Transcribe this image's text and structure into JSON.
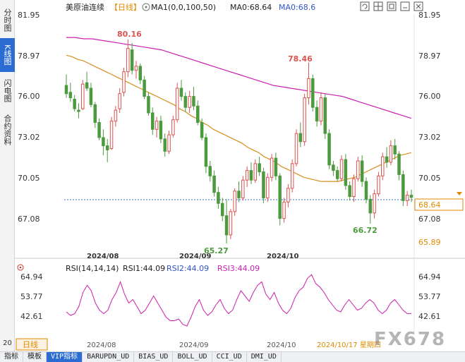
{
  "left_tabs": {
    "items": [
      {
        "label": "分时图",
        "active": false
      },
      {
        "label": "K线图",
        "active": true
      },
      {
        "label": "闪电图",
        "active": false
      },
      {
        "label": "合约资料",
        "active": false
      }
    ],
    "bottom_label": "20"
  },
  "header": {
    "instrument": "美原油连续",
    "period": "【日线】",
    "ma1_text": "MA1(0,0,100,50)",
    "ma0_text": "MA0:68.64",
    "ma0b_text": "MA0:68.6"
  },
  "toolbar_icons": [
    "refresh-icon",
    "grid-icon",
    "maximize-icon",
    "minimize-icon",
    "close-icon"
  ],
  "main_axis": {
    "ticks": [
      "81.95",
      "78.97",
      "76.00",
      "73.02",
      "70.05",
      "67.08"
    ],
    "current_price": "68.64",
    "low_marker_label": "65.89",
    "annotations": [
      "80.16",
      "78.46",
      "65.27",
      "66.72"
    ]
  },
  "rsi": {
    "header": "RSI(14,14,14)",
    "rsi1": "RSI1:44.09",
    "rsi2": "RSI2:44.09",
    "rsi3": "RSI3:44.09",
    "ticks": [
      "64.94",
      "53.77",
      "42.61"
    ]
  },
  "x_axis": {
    "labels": [
      "2024/08",
      "2024/09",
      "2024/10"
    ],
    "period_label": "日线",
    "cursor_date": "2024/10/17 星期四"
  },
  "bottom_tabs": [
    "指标",
    "模板",
    "VIP指标",
    "BARUPDN_UD",
    "BIAS_UD",
    "BOLL_UD",
    "CCI_UD",
    "DMI_UD"
  ],
  "bottom_active_index": 2,
  "watermark": "FX678",
  "colors": {
    "up": "#d9534f",
    "down": "#4c9a3e",
    "ma_orange": "#d6901f",
    "ma_magenta": "#cc1fae",
    "rsi_line": "#cc1fae",
    "accent_blue": "#2b6cd3",
    "price_box": "#e08a00"
  },
  "chart_data": {
    "type": "candlestick",
    "title": "美原油连续 日线",
    "ylim": [
      64.5,
      82.5
    ],
    "candles": [
      [
        76.8,
        77.6,
        75.9,
        76.2
      ],
      [
        76.3,
        77.0,
        75.6,
        75.9
      ],
      [
        75.8,
        76.1,
        74.9,
        75.1
      ],
      [
        75.0,
        75.5,
        74.4,
        74.9
      ],
      [
        75.1,
        77.2,
        75.0,
        76.9
      ],
      [
        77.0,
        77.8,
        76.4,
        76.6
      ],
      [
        76.6,
        77.0,
        75.2,
        75.4
      ],
      [
        75.4,
        75.6,
        73.7,
        74.1
      ],
      [
        74.1,
        74.4,
        72.8,
        73.0
      ],
      [
        73.0,
        73.6,
        71.7,
        72.4
      ],
      [
        72.4,
        72.9,
        71.2,
        72.1
      ],
      [
        72.2,
        74.5,
        72.1,
        74.2
      ],
      [
        74.2,
        75.3,
        73.8,
        75.0
      ],
      [
        75.1,
        76.6,
        74.8,
        76.2
      ],
      [
        76.3,
        78.1,
        76.0,
        77.8
      ],
      [
        77.8,
        80.16,
        77.4,
        79.5
      ],
      [
        79.4,
        79.9,
        77.6,
        77.9
      ],
      [
        77.9,
        78.6,
        77.3,
        78.2
      ],
      [
        78.2,
        78.4,
        76.9,
        77.2
      ],
      [
        77.2,
        77.5,
        75.8,
        76.0
      ],
      [
        76.0,
        76.3,
        74.6,
        74.8
      ],
      [
        74.8,
        75.2,
        73.2,
        73.6
      ],
      [
        73.6,
        74.5,
        73.0,
        74.2
      ],
      [
        74.2,
        74.6,
        72.6,
        72.9
      ],
      [
        72.9,
        73.3,
        71.6,
        72.0
      ],
      [
        72.0,
        73.5,
        71.8,
        73.2
      ],
      [
        73.2,
        74.6,
        73.0,
        74.3
      ],
      [
        74.3,
        77.0,
        74.1,
        76.6
      ],
      [
        76.6,
        77.2,
        75.7,
        76.0
      ],
      [
        76.0,
        76.3,
        74.9,
        75.2
      ],
      [
        75.2,
        76.4,
        74.8,
        76.0
      ],
      [
        76.0,
        76.7,
        75.0,
        75.3
      ],
      [
        75.3,
        75.7,
        73.9,
        74.1
      ],
      [
        74.1,
        74.4,
        72.8,
        73.0
      ],
      [
        73.0,
        73.3,
        70.4,
        70.9
      ],
      [
        70.9,
        71.3,
        69.8,
        70.2
      ],
      [
        70.2,
        70.6,
        68.7,
        69.0
      ],
      [
        69.0,
        69.4,
        67.8,
        68.2
      ],
      [
        68.2,
        68.6,
        66.9,
        67.3
      ],
      [
        67.3,
        68.5,
        65.27,
        65.9
      ],
      [
        65.9,
        67.8,
        65.6,
        67.6
      ],
      [
        67.6,
        69.3,
        67.3,
        69.1
      ],
      [
        69.1,
        69.8,
        68.3,
        68.6
      ],
      [
        68.6,
        70.2,
        68.4,
        69.9
      ],
      [
        69.9,
        70.9,
        69.4,
        70.6
      ],
      [
        70.6,
        71.2,
        69.6,
        69.9
      ],
      [
        69.9,
        71.4,
        69.7,
        71.1
      ],
      [
        71.1,
        71.6,
        70.2,
        70.5
      ],
      [
        70.5,
        70.8,
        68.2,
        68.6
      ],
      [
        68.6,
        70.4,
        68.3,
        70.1
      ],
      [
        70.1,
        71.8,
        69.8,
        71.5
      ],
      [
        71.5,
        71.9,
        69.9,
        70.2
      ],
      [
        70.2,
        70.4,
        66.6,
        67.1
      ],
      [
        67.1,
        68.6,
        66.8,
        68.3
      ],
      [
        68.3,
        69.6,
        67.9,
        69.3
      ],
      [
        69.3,
        71.4,
        69.0,
        71.1
      ],
      [
        71.1,
        73.6,
        70.9,
        73.3
      ],
      [
        73.3,
        74.1,
        72.3,
        72.7
      ],
      [
        72.7,
        76.2,
        72.4,
        75.9
      ],
      [
        75.9,
        78.46,
        75.4,
        77.3
      ],
      [
        77.3,
        77.6,
        74.9,
        75.2
      ],
      [
        75.2,
        75.7,
        73.8,
        74.2
      ],
      [
        74.2,
        76.3,
        73.9,
        75.9
      ],
      [
        75.9,
        76.2,
        72.9,
        73.3
      ],
      [
        73.3,
        73.6,
        70.7,
        71.0
      ],
      [
        71.0,
        71.3,
        70.2,
        70.6
      ],
      [
        70.6,
        70.9,
        69.8,
        70.0
      ],
      [
        70.0,
        71.7,
        69.8,
        71.4
      ],
      [
        71.4,
        71.8,
        69.2,
        69.5
      ],
      [
        69.5,
        69.8,
        68.4,
        68.7
      ],
      [
        68.7,
        70.3,
        68.3,
        70.0
      ],
      [
        70.0,
        71.6,
        69.8,
        71.3
      ],
      [
        71.3,
        71.7,
        69.4,
        69.8
      ],
      [
        69.8,
        70.1,
        68.2,
        68.5
      ],
      [
        68.5,
        68.8,
        66.72,
        67.5
      ],
      [
        67.5,
        69.2,
        67.1,
        68.9
      ],
      [
        68.9,
        70.5,
        68.7,
        70.2
      ],
      [
        70.2,
        71.9,
        69.9,
        71.6
      ],
      [
        71.6,
        72.3,
        70.8,
        71.2
      ],
      [
        71.2,
        72.8,
        71.0,
        72.4
      ],
      [
        72.4,
        72.9,
        71.4,
        71.8
      ],
      [
        71.8,
        72.0,
        69.9,
        70.3
      ],
      [
        70.3,
        70.6,
        68.0,
        68.4
      ],
      [
        68.4,
        69.1,
        68.0,
        68.8
      ],
      [
        68.8,
        69.2,
        68.3,
        68.64
      ]
    ],
    "ma_orange": [
      79.0,
      78.9,
      78.7,
      78.6,
      78.4,
      78.2,
      78.0,
      77.8,
      77.6,
      77.4,
      77.2,
      77.0,
      76.8,
      76.6,
      76.4,
      76.2,
      76.0,
      75.8,
      75.6,
      75.4,
      75.1,
      74.9,
      74.6,
      74.4,
      74.1,
      73.9,
      73.6,
      73.4,
      73.2,
      73.0,
      72.8,
      72.6,
      72.3,
      72.1,
      71.9,
      71.6,
      71.4,
      71.2,
      70.9,
      70.7,
      70.5,
      70.3,
      70.1,
      70.0,
      69.9,
      69.8,
      69.8,
      69.8,
      69.8,
      69.9,
      70.0,
      70.1,
      70.3,
      70.5,
      70.7,
      70.9,
      71.1,
      71.3,
      71.5,
      71.7,
      71.8,
      71.9
    ],
    "ma_magenta": [
      80.3,
      80.3,
      80.2,
      80.2,
      80.1,
      80.0,
      79.9,
      79.8,
      79.7,
      79.6,
      79.5,
      79.4,
      79.2,
      79.0,
      78.8,
      78.6,
      78.4,
      78.2,
      78.0,
      77.8,
      77.6,
      77.4,
      77.2,
      77.0,
      76.8,
      76.7,
      76.6,
      76.5,
      76.4,
      76.3,
      76.2,
      76.1,
      76.0,
      75.8,
      75.6,
      75.4,
      75.2,
      75.0,
      74.8,
      74.6,
      74.4
    ],
    "rsi_values": [
      45,
      43,
      44,
      48,
      56,
      60,
      57,
      50,
      46,
      44,
      46,
      52,
      56,
      62,
      55,
      50,
      52,
      48,
      44,
      46,
      50,
      54,
      50,
      46,
      42,
      40,
      40,
      41,
      38,
      37,
      42,
      48,
      52,
      46,
      43,
      45,
      49,
      52,
      47,
      44,
      46,
      52,
      57,
      54,
      51,
      56,
      60,
      62,
      55,
      52,
      56,
      50,
      46,
      44,
      47,
      53,
      57,
      59,
      64,
      66,
      61,
      59,
      56,
      52,
      49,
      46,
      45,
      49,
      52,
      49,
      46,
      47,
      50,
      52,
      50,
      46,
      44,
      46,
      50,
      52,
      49,
      46,
      44,
      44.09
    ]
  }
}
